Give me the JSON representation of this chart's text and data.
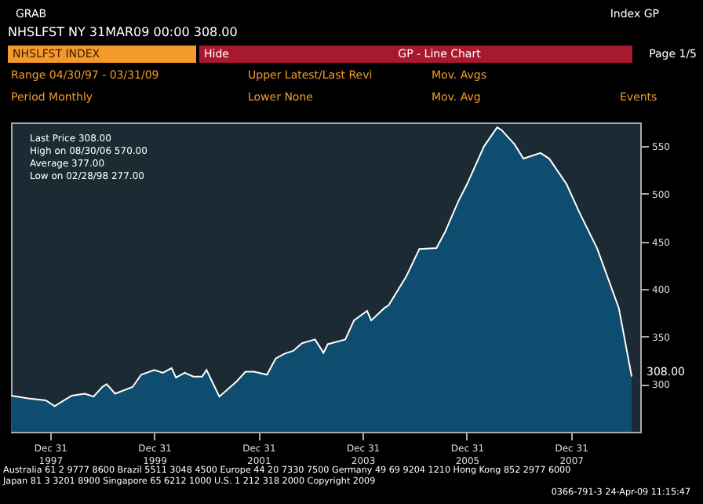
{
  "chart_data": {
    "type": "area",
    "title": "NHSLFST INDEX",
    "subtitle": "NHSLFST NY 31MAR09 00:00 308.00",
    "x": [
      "1997-04",
      "1997-08",
      "1997-12",
      "1998-02",
      "1998-06",
      "1998-09",
      "1998-11",
      "1999-01",
      "1999-02",
      "1999-04",
      "1999-08",
      "1999-10",
      "2000-01",
      "2000-03",
      "2000-05",
      "2000-06",
      "2000-08",
      "2000-10",
      "2000-12",
      "2001-01",
      "2001-04",
      "2001-08",
      "2001-10",
      "2001-12",
      "2002-03",
      "2002-05",
      "2002-07",
      "2002-09",
      "2002-11",
      "2003-02",
      "2003-04",
      "2003-05",
      "2003-09",
      "2003-11",
      "2004-02",
      "2004-03",
      "2004-06",
      "2004-07",
      "2004-11",
      "2005-02",
      "2005-06",
      "2005-08",
      "2005-11",
      "2006-01",
      "2006-05",
      "2006-08",
      "2006-09",
      "2006-12",
      "2007-02",
      "2007-06",
      "2007-08",
      "2007-12",
      "2008-03",
      "2008-07",
      "2008-12",
      "2009-03"
    ],
    "series": [
      {
        "color": "#0e4f74",
        "values": [
          288,
          285,
          283,
          277,
          288,
          290,
          287,
          297,
          300,
          290,
          297,
          310,
          315,
          312,
          317,
          307,
          312,
          308,
          308,
          315,
          287,
          303,
          313,
          313,
          310,
          327,
          332,
          335,
          343,
          347,
          333,
          342,
          347,
          367,
          377,
          367,
          380,
          383,
          413,
          442,
          443,
          460,
          492,
          510,
          550,
          570,
          567,
          552,
          537,
          543,
          537,
          510,
          480,
          443,
          380,
          308
        ]
      }
    ],
    "xlim": [
      "1997-04-01",
      "2009-04-30"
    ],
    "xticks": [
      {
        "value": "1997-12-31",
        "label": "Dec 31\n1997"
      },
      {
        "value": "1999-12-31",
        "label": "Dec 31\n1999"
      },
      {
        "value": "2001-12-31",
        "label": "Dec 31\n2001"
      },
      {
        "value": "2003-12-31",
        "label": "Dec 31\n2003"
      },
      {
        "value": "2005-12-31",
        "label": "Dec 31\n2005"
      },
      {
        "value": "2007-12-31",
        "label": "Dec 31\n2007"
      }
    ],
    "ylim": [
      250,
      575
    ],
    "yticks": [
      300,
      350,
      400,
      450,
      500,
      550
    ],
    "grid": false,
    "annotations": [
      "GRAB",
      "Index GP",
      "Hide",
      "GP - Line Chart",
      "Page 1/5",
      "Range 04/30/97 - 03/31/09",
      "Upper Latest/Last Revi",
      "Mov. Avgs",
      "Period Monthly",
      "Lower None",
      "Mov. Avg",
      "Events",
      "Last Price 308.00",
      "High on 08/30/06 570.00",
      "Average 377.00",
      "Low on 02/28/98 277.00",
      "Australia 61 2 9777 8600 Brazil 5511 3048 4500 Europe 44 20 7330 7500 Germany 49 69 9204 1210 Hong Kong 852 2977 6000",
      "Japan 81 3 3201 8900 Singapore 65 6212 1000 U.S. 1 212 318 2000 Copyright 2009",
      "0366-791-3 24-Apr-09 11:15:47",
      {
        "text": "308.00",
        "x": "2009-03",
        "y": 308
      }
    ]
  }
}
